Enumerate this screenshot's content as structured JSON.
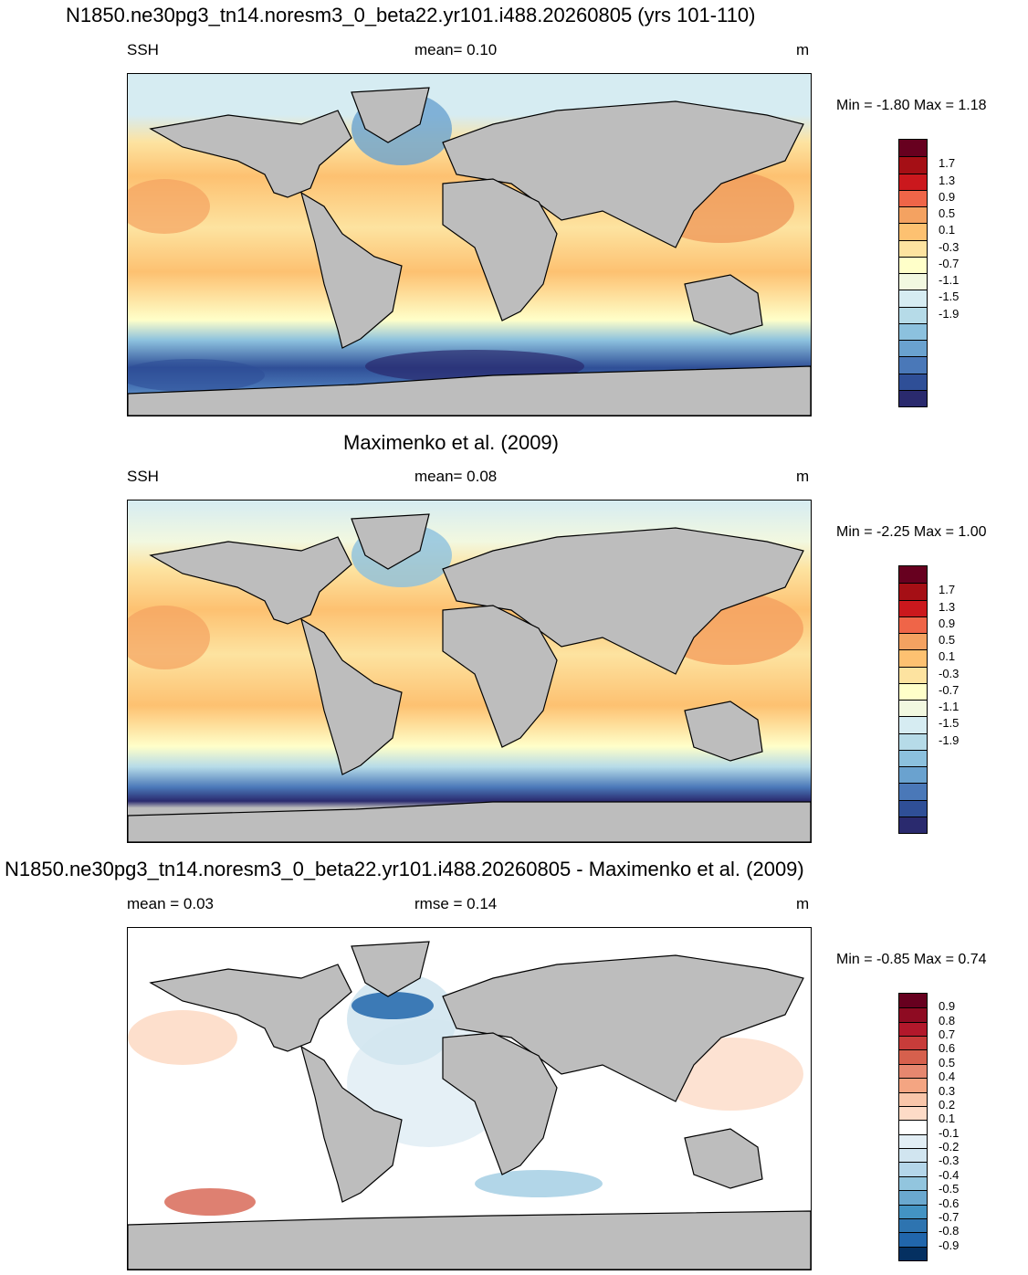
{
  "panels": [
    {
      "title": "N1850.ne30pg3_tn14.noresm3_0_beta22.yr101.i488.20260805 (yrs 101-110)",
      "left_label": "SSH",
      "center_label": "mean=   0.10",
      "right_label": "m",
      "minmax": "Min =  -1.80 Max =   1.18",
      "colorbar_labels": [
        "1.7",
        "1.3",
        "0.9",
        "0.5",
        "0.1",
        "-0.3",
        "-0.7",
        "-1.1",
        "-1.5",
        "-1.9"
      ],
      "colorbar_colors": [
        "#67001f",
        "#a50f15",
        "#cb181d",
        "#ef6548",
        "#f4a261",
        "#fdc171",
        "#fde3a0",
        "#ffffc9",
        "#f2f8e0",
        "#d6ecf2",
        "#b6dbe8",
        "#8cc1de",
        "#6aa2cf",
        "#4a78b8",
        "#2f4f97",
        "#2a2a6e"
      ]
    },
    {
      "title": "Maximenko et al. (2009)",
      "left_label": "SSH",
      "center_label": "mean=   0.08",
      "right_label": "m",
      "minmax": "Min =  -2.25 Max =   1.00",
      "colorbar_labels": [
        "1.7",
        "1.3",
        "0.9",
        "0.5",
        "0.1",
        "-0.3",
        "-0.7",
        "-1.1",
        "-1.5",
        "-1.9"
      ],
      "colorbar_colors": [
        "#67001f",
        "#a50f15",
        "#cb181d",
        "#ef6548",
        "#f4a261",
        "#fdc171",
        "#fde3a0",
        "#ffffc9",
        "#f2f8e0",
        "#d6ecf2",
        "#b6dbe8",
        "#8cc1de",
        "#6aa2cf",
        "#4a78b8",
        "#2f4f97",
        "#2a2a6e"
      ]
    },
    {
      "title": "N1850.ne30pg3_tn14.noresm3_0_beta22.yr101.i488.20260805 - Maximenko et al. (2009)",
      "left_label": "mean =   0.03",
      "center_label": "rmse =   0.14",
      "right_label": "m",
      "minmax": "Min =  -0.85 Max =   0.74",
      "colorbar_labels": [
        "0.9",
        "0.8",
        "0.7",
        "0.6",
        "0.5",
        "0.4",
        "0.3",
        "0.2",
        "0.1",
        "-0.1",
        "-0.2",
        "-0.3",
        "-0.4",
        "-0.5",
        "-0.6",
        "-0.7",
        "-0.8",
        "-0.9"
      ],
      "colorbar_colors": [
        "#67001f",
        "#8e0b22",
        "#b2182b",
        "#c83c3a",
        "#d6604d",
        "#e6876f",
        "#f4a582",
        "#f9c6aa",
        "#fddbc7",
        "#ffffff",
        "#e2eef5",
        "#d1e5f0",
        "#b4d6ea",
        "#92c5de",
        "#6aa8cf",
        "#4393c3",
        "#2e74b0",
        "#2166ac",
        "#053061"
      ]
    }
  ]
}
